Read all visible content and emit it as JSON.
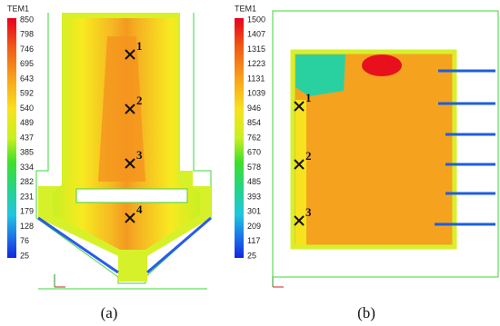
{
  "panels": [
    {
      "colorbar": {
        "title": "TEM1",
        "labels": [
          "850",
          "798",
          "746",
          "695",
          "643",
          "592",
          "540",
          "489",
          "437",
          "385",
          "334",
          "282",
          "231",
          "179",
          "128",
          "76",
          "25"
        ]
      },
      "points": [
        "1",
        "2",
        "3",
        "4"
      ],
      "caption": "(a)"
    },
    {
      "colorbar": {
        "title": "TEM1",
        "labels": [
          "1500",
          "1407",
          "1315",
          "1223",
          "1131",
          "1039",
          "946",
          "854",
          "762",
          "670",
          "578",
          "485",
          "393",
          "301",
          "209",
          "117",
          "25"
        ]
      },
      "points": [
        "1",
        "2",
        "3"
      ],
      "caption": "(b)"
    }
  ]
}
